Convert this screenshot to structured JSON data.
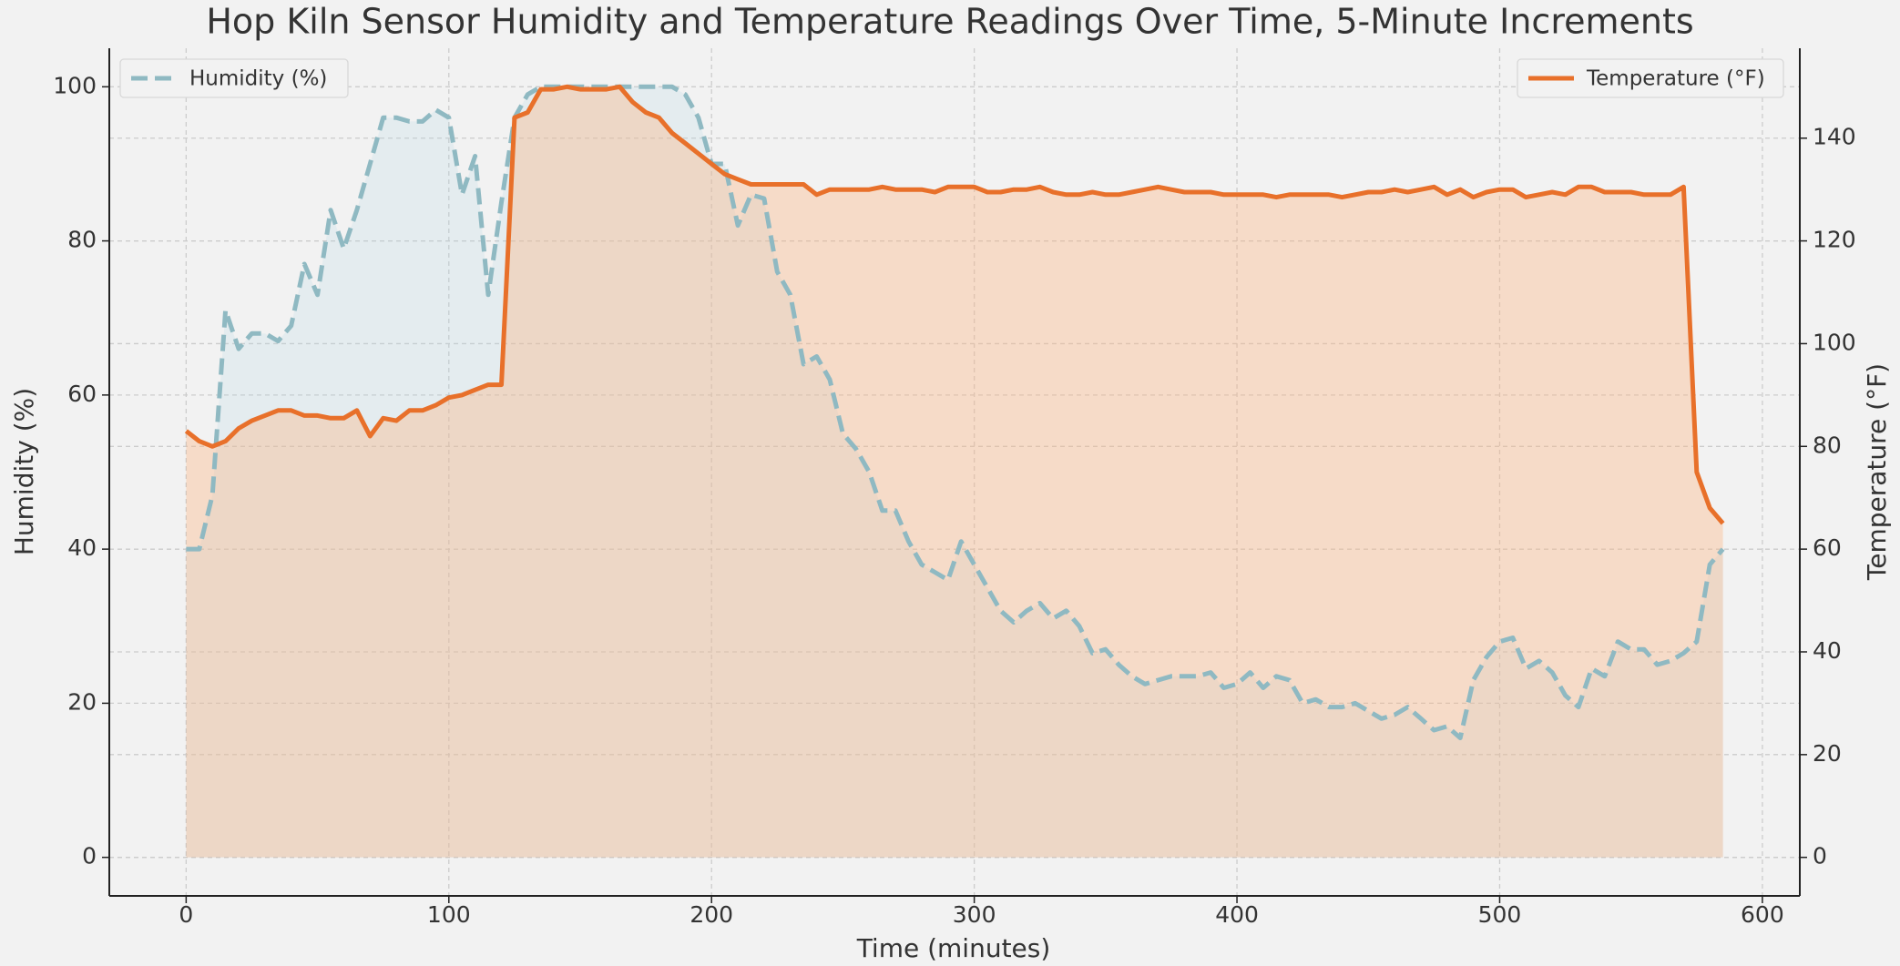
{
  "chart_data": {
    "type": "line",
    "title": "Hop Kiln Sensor Humidity and Temperature Readings Over Time, 5-Minute Increments",
    "xlabel": "Time (minutes)",
    "ylabel": "Humidity (%)",
    "y2label": "Temperature (°F)",
    "x": [
      0,
      5,
      10,
      15,
      20,
      25,
      30,
      35,
      40,
      45,
      50,
      55,
      60,
      65,
      70,
      75,
      80,
      85,
      90,
      95,
      100,
      105,
      110,
      115,
      120,
      125,
      130,
      135,
      140,
      145,
      150,
      155,
      160,
      165,
      170,
      175,
      180,
      185,
      190,
      195,
      200,
      205,
      210,
      215,
      220,
      225,
      230,
      235,
      240,
      245,
      250,
      255,
      260,
      265,
      270,
      275,
      280,
      285,
      290,
      295,
      300,
      305,
      310,
      315,
      320,
      325,
      330,
      335,
      340,
      345,
      350,
      355,
      360,
      365,
      370,
      375,
      380,
      385,
      390,
      395,
      400,
      405,
      410,
      415,
      420,
      425,
      430,
      435,
      440,
      445,
      450,
      455,
      460,
      465,
      470,
      475,
      480,
      485,
      490,
      495,
      500,
      505,
      510,
      515,
      520,
      525,
      530,
      535,
      540,
      545,
      550,
      555,
      560,
      565,
      570,
      575,
      580,
      585
    ],
    "series": [
      {
        "name": "Humidity (%)",
        "color": "#8fb9c2",
        "dashed": true,
        "fill": "#add8e6",
        "legend": "upper left",
        "values": [
          40,
          40,
          47,
          71,
          66,
          68,
          68,
          67,
          69,
          77,
          73,
          84,
          79,
          84,
          90,
          96,
          96,
          95.5,
          95.5,
          97,
          96,
          86,
          91,
          73,
          85,
          96,
          99,
          100,
          100,
          100,
          100,
          100,
          100,
          100,
          100,
          100,
          100,
          100,
          99,
          96,
          90,
          90,
          82,
          86,
          85.5,
          76,
          73,
          64,
          65,
          62,
          55,
          53,
          50,
          45,
          45,
          41,
          38,
          37,
          36,
          41,
          38,
          35,
          32,
          30.5,
          32,
          33,
          31,
          32,
          30,
          26.5,
          27,
          25,
          23.5,
          22.5,
          23,
          23.5,
          23.5,
          23.5,
          24,
          22,
          22.5,
          24,
          22,
          23.5,
          23,
          20,
          20.5,
          19.5,
          19.5,
          20,
          19,
          18,
          18.5,
          19.5,
          18,
          16.5,
          17,
          15.5,
          23,
          26,
          28,
          28.5,
          24.5,
          25.5,
          24,
          21,
          19.5,
          24.5,
          23.5,
          28,
          27,
          27,
          25,
          25.5,
          26.5,
          28,
          38,
          40
        ]
      },
      {
        "name": "Temperature (°F)",
        "color": "#e8702a",
        "dashed": false,
        "fill": "#ffb37a",
        "legend": "upper right",
        "axis": "y2",
        "values": [
          83,
          81,
          80,
          81,
          83.5,
          85,
          86,
          87,
          87,
          86,
          86,
          85.5,
          85.5,
          87,
          82,
          85.5,
          85,
          87,
          87,
          88,
          89.5,
          90,
          91,
          92,
          92,
          144,
          145,
          149.5,
          149.5,
          150,
          149.5,
          149.5,
          149.5,
          150,
          147,
          145,
          144,
          141,
          139,
          137,
          135,
          133,
          132,
          131,
          131,
          131,
          131,
          131,
          129,
          130,
          130,
          130,
          130,
          130.5,
          130,
          130,
          130,
          129.5,
          130.5,
          130.5,
          130.5,
          129.5,
          129.5,
          130,
          130,
          130.5,
          129.5,
          129,
          129,
          129.5,
          129,
          129,
          129.5,
          130,
          130.5,
          130,
          129.5,
          129.5,
          129.5,
          129,
          129,
          129,
          129,
          128.5,
          129,
          129,
          129,
          129,
          128.5,
          129,
          129.5,
          129.5,
          130,
          129.5,
          130,
          130.5,
          129,
          130,
          128.5,
          129.5,
          130,
          130,
          128.5,
          129,
          129.5,
          129,
          130.5,
          130.5,
          129.5,
          129.5,
          129.5,
          129,
          129,
          129,
          130.5,
          75,
          68,
          65
        ]
      }
    ],
    "xlim": [
      -29.25,
      614.25
    ],
    "xticks": [
      0,
      100,
      200,
      300,
      400,
      500,
      600
    ],
    "ylim": [
      -5,
      105
    ],
    "yticks": [
      0,
      20,
      40,
      60,
      80,
      100
    ],
    "y2lim": [
      -7.5,
      157.5
    ],
    "y2ticks": [
      0,
      20,
      40,
      60,
      80,
      100,
      120,
      140
    ],
    "grid": true
  }
}
